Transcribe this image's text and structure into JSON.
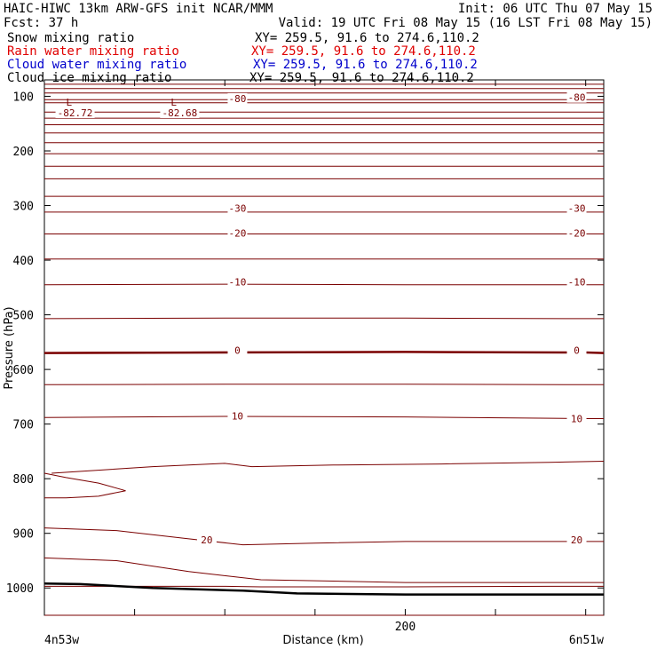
{
  "header": {
    "line1_left": "HAIC-HIWC 13km ARW-GFS init   NCAR/MMM",
    "line1_right": "Init: 06 UTC Thu 07 May 15",
    "line2_left": "Fcst:   37 h",
    "line2_right": "Valid: 19 UTC Fri 08 May 15 (16 LST Fri 08 May 15)",
    "fields": [
      {
        "name": "Snow mixing ratio",
        "xy": "XY= 259.5, 91.6 to 274.6,110.2",
        "color": "#000000"
      },
      {
        "name": "Rain water mixing ratio",
        "xy": "XY= 259.5, 91.6 to 274.6,110.2",
        "color": "#e00000"
      },
      {
        "name": "Cloud water mixing ratio",
        "xy": "XY= 259.5, 91.6 to 274.6,110.2",
        "color": "#0000cc"
      },
      {
        "name": "Cloud ice mixing ratio",
        "xy": "XY= 259.5, 91.6 to 274.6,110.2",
        "color": "#000000"
      }
    ]
  },
  "chart_data": {
    "type": "line",
    "ylabel": "Pressure (hPa)",
    "xlabel": "Distance (km)",
    "xlim": [
      0,
      310
    ],
    "ylim": [
      1050,
      70
    ],
    "x_ticks": [
      200
    ],
    "x_minor_ticks": [
      0,
      50,
      100,
      150,
      200,
      250,
      300
    ],
    "y_ticks": [
      100,
      200,
      300,
      400,
      500,
      600,
      700,
      800,
      900,
      1000
    ],
    "x_endpoint_labels": {
      "left": "4n53w",
      "right": "6n51w"
    },
    "isotherm_color": "#7a0000",
    "isotherms": [
      {
        "x": [
          0,
          40,
          100,
          160,
          240,
          310
        ],
        "p": [
          1060,
          1060,
          1060,
          1060,
          1060,
          1060
        ]
      },
      {
        "x": [
          0,
          100,
          120,
          200,
          280,
          310
        ],
        "p": [
          997,
          997,
          998,
          998,
          997,
          997
        ]
      },
      {
        "x": [
          0,
          40,
          80,
          120,
          200,
          310
        ],
        "p": [
          945,
          950,
          970,
          985,
          990,
          990
        ]
      },
      {
        "x": [
          0,
          40,
          80,
          110,
          150,
          200,
          300,
          310
        ],
        "p": [
          890,
          895,
          910,
          921,
          918,
          915,
          915,
          915
        ]
      },
      {
        "x": [
          0,
          12,
          30,
          45,
          30,
          12,
          0
        ],
        "p": [
          790,
          798,
          808,
          822,
          832,
          835,
          835
        ]
      },
      {
        "x": [
          4,
          60,
          100,
          115,
          160,
          220,
          280,
          310
        ],
        "p": [
          790,
          778,
          772,
          778,
          775,
          773,
          770,
          768
        ]
      },
      {
        "x": [
          0,
          100,
          200,
          300,
          310
        ],
        "p": [
          688,
          686,
          687,
          690,
          690
        ]
      },
      {
        "x": [
          0,
          100,
          200,
          300,
          310
        ],
        "p": [
          628,
          627,
          627,
          628,
          628
        ]
      },
      {
        "x": [
          0,
          100,
          200,
          300,
          310
        ],
        "p": [
          569,
          568,
          568,
          569,
          569
        ]
      },
      {
        "x": [
          0,
          100,
          200,
          300,
          310
        ],
        "p": [
          507,
          506,
          506,
          507,
          507
        ]
      },
      {
        "x": [
          0,
          100,
          200,
          300,
          310
        ],
        "p": [
          445,
          444,
          445,
          445,
          445
        ]
      },
      {
        "x": [
          0,
          100,
          200,
          300,
          310
        ],
        "p": [
          398,
          398,
          398,
          398,
          398
        ]
      },
      {
        "x": [
          0,
          100,
          200,
          300,
          310
        ],
        "p": [
          352,
          352,
          352,
          352,
          352
        ]
      },
      {
        "x": [
          0,
          100,
          200,
          300,
          310
        ],
        "p": [
          312,
          312,
          312,
          312,
          312
        ]
      },
      {
        "x": [
          0,
          100,
          200,
          300,
          310
        ],
        "p": [
          283,
          283,
          283,
          283,
          283
        ]
      },
      {
        "x": [
          0,
          100,
          200,
          300,
          310
        ],
        "p": [
          251,
          251,
          251,
          251,
          251
        ]
      },
      {
        "x": [
          0,
          100,
          200,
          300,
          310
        ],
        "p": [
          228,
          228,
          228,
          228,
          228
        ]
      },
      {
        "x": [
          0,
          100,
          200,
          300,
          310
        ],
        "p": [
          205,
          205,
          205,
          205,
          205
        ]
      },
      {
        "x": [
          0,
          100,
          200,
          300,
          310
        ],
        "p": [
          185,
          185,
          185,
          185,
          185
        ]
      },
      {
        "x": [
          0,
          100,
          200,
          300,
          310
        ],
        "p": [
          167,
          167,
          167,
          167,
          167
        ]
      },
      {
        "x": [
          0,
          100,
          200,
          300,
          310
        ],
        "p": [
          152,
          152,
          152,
          152,
          152
        ]
      },
      {
        "x": [
          0,
          100,
          200,
          300,
          310
        ],
        "p": [
          140,
          140,
          140,
          140,
          140
        ]
      },
      {
        "x": [
          0,
          100,
          200,
          300,
          310
        ],
        "p": [
          129,
          129,
          129,
          129,
          129
        ]
      },
      {
        "x": [
          0,
          100,
          200,
          300,
          310
        ],
        "p": [
          112,
          112,
          112,
          112,
          112
        ]
      },
      {
        "x": [
          0,
          100,
          200,
          300,
          310
        ],
        "p": [
          106,
          106,
          106,
          106,
          106
        ]
      },
      {
        "x": [
          0,
          100,
          200,
          300,
          310
        ],
        "p": [
          94,
          94,
          94,
          94,
          94
        ]
      },
      {
        "x": [
          0,
          100,
          200,
          300,
          310
        ],
        "p": [
          86,
          86,
          86,
          86,
          86
        ]
      },
      {
        "x": [
          0,
          100,
          200,
          300,
          310
        ],
        "p": [
          78,
          78,
          78,
          78,
          78
        ]
      }
    ],
    "bold_isotherm": {
      "x": [
        0,
        100,
        200,
        300,
        310
      ],
      "p": [
        570,
        569,
        568,
        569,
        570
      ]
    },
    "terrain": {
      "x": [
        0,
        20,
        60,
        110,
        140,
        200,
        260,
        310
      ],
      "p": [
        992,
        993,
        1000,
        1005,
        1010,
        1012,
        1012,
        1012
      ]
    },
    "contour_labels": [
      {
        "text": "-80",
        "x": 107,
        "p": 104
      },
      {
        "text": "-80",
        "x": 295,
        "p": 102
      },
      {
        "text": "-30",
        "x": 107,
        "p": 305
      },
      {
        "text": "-30",
        "x": 295,
        "p": 305
      },
      {
        "text": "-20",
        "x": 107,
        "p": 350
      },
      {
        "text": "-20",
        "x": 295,
        "p": 350
      },
      {
        "text": "-10",
        "x": 107,
        "p": 440
      },
      {
        "text": "-10",
        "x": 295,
        "p": 440
      },
      {
        "text": "0",
        "x": 107,
        "p": 565
      },
      {
        "text": "0",
        "x": 295,
        "p": 565
      },
      {
        "text": "10",
        "x": 107,
        "p": 685
      },
      {
        "text": "10",
        "x": 295,
        "p": 690
      },
      {
        "text": "20",
        "x": 90,
        "p": 912
      },
      {
        "text": "20",
        "x": 295,
        "p": 912
      }
    ],
    "low_markers": [
      {
        "letter": "L",
        "value": "-82.72",
        "x": 17,
        "p": 96
      },
      {
        "letter": "L",
        "value": "-82.68",
        "x": 75,
        "p": 96
      }
    ]
  }
}
